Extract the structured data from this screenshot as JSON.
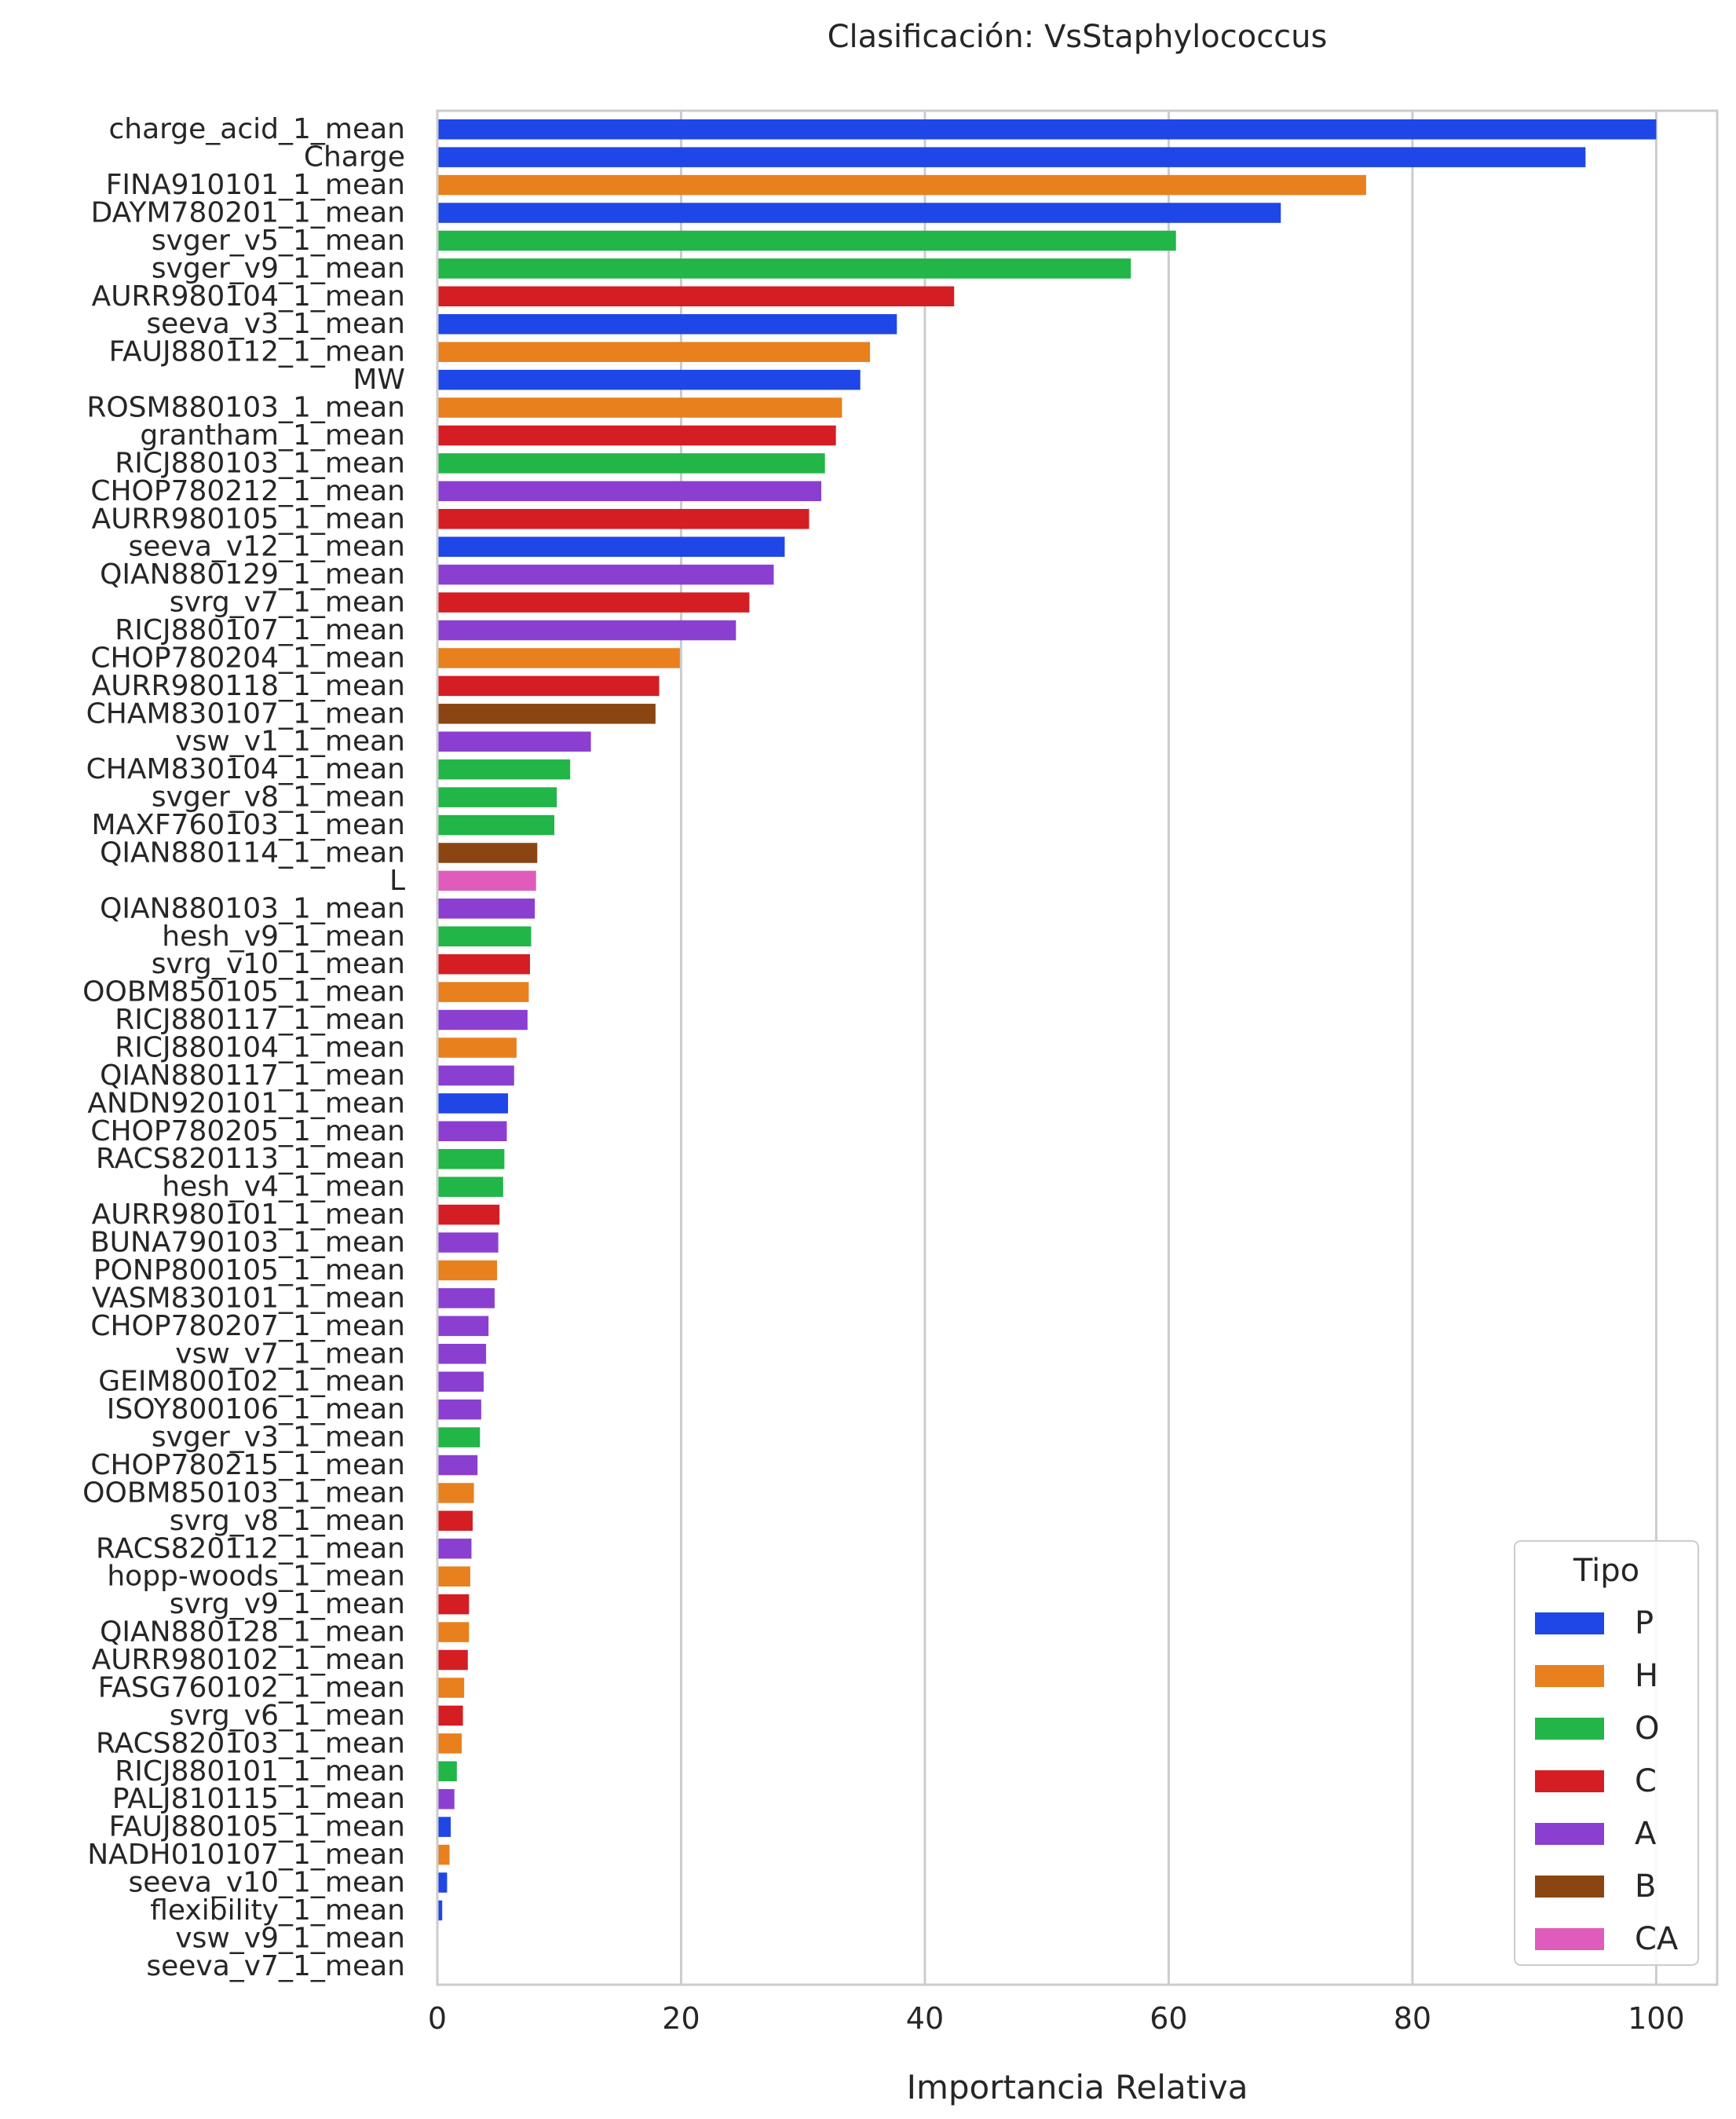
{
  "chart_data": {
    "type": "bar",
    "orientation": "horizontal",
    "title": "Clasificación: VsStaphylococcus",
    "xlabel": "Importancia Relativa",
    "ylabel": "",
    "xlim": [
      0,
      105
    ],
    "xticks": [
      0,
      20,
      40,
      60,
      80,
      100
    ],
    "grid": true,
    "legend": {
      "title": "Tipo",
      "placement": "bottom-right",
      "entries": [
        {
          "label": "P",
          "color": "#1f46e6"
        },
        {
          "label": "H",
          "color": "#e8801e"
        },
        {
          "label": "O",
          "color": "#22b548"
        },
        {
          "label": "C",
          "color": "#d41e23"
        },
        {
          "label": "A",
          "color": "#8b3fd0"
        },
        {
          "label": "B",
          "color": "#8b4513"
        },
        {
          "label": "CA",
          "color": "#e05cbc"
        }
      ]
    },
    "bars": [
      {
        "label": "charge_acid_1_mean",
        "value": 100,
        "type": "P"
      },
      {
        "label": "Charge",
        "value": 94.2,
        "type": "P"
      },
      {
        "label": "FINA910101_1_mean",
        "value": 76.2,
        "type": "H"
      },
      {
        "label": "DAYM780201_1_mean",
        "value": 69.2,
        "type": "P"
      },
      {
        "label": "svger_v5_1_mean",
        "value": 60.6,
        "type": "O"
      },
      {
        "label": "svger_v9_1_mean",
        "value": 56.9,
        "type": "O"
      },
      {
        "label": "AURR980104_1_mean",
        "value": 42.4,
        "type": "C"
      },
      {
        "label": "seeva_v3_1_mean",
        "value": 37.7,
        "type": "P"
      },
      {
        "label": "FAUJ880112_1_mean",
        "value": 35.5,
        "type": "H"
      },
      {
        "label": "MW",
        "value": 34.7,
        "type": "P"
      },
      {
        "label": "ROSM880103_1_mean",
        "value": 33.2,
        "type": "H"
      },
      {
        "label": "grantham_1_mean",
        "value": 32.7,
        "type": "C"
      },
      {
        "label": "RICJ880103_1_mean",
        "value": 31.8,
        "type": "O"
      },
      {
        "label": "CHOP780212_1_mean",
        "value": 31.5,
        "type": "A"
      },
      {
        "label": "AURR980105_1_mean",
        "value": 30.5,
        "type": "C"
      },
      {
        "label": "seeva_v12_1_mean",
        "value": 28.5,
        "type": "P"
      },
      {
        "label": "QIAN880129_1_mean",
        "value": 27.6,
        "type": "A"
      },
      {
        "label": "svrg_v7_1_mean",
        "value": 25.6,
        "type": "C"
      },
      {
        "label": "RICJ880107_1_mean",
        "value": 24.5,
        "type": "A"
      },
      {
        "label": "CHOP780204_1_mean",
        "value": 19.9,
        "type": "H"
      },
      {
        "label": "AURR980118_1_mean",
        "value": 18.2,
        "type": "C"
      },
      {
        "label": "CHAM830107_1_mean",
        "value": 17.9,
        "type": "B"
      },
      {
        "label": "vsw_v1_1_mean",
        "value": 12.6,
        "type": "A"
      },
      {
        "label": "CHAM830104_1_mean",
        "value": 10.9,
        "type": "O"
      },
      {
        "label": "svger_v8_1_mean",
        "value": 9.8,
        "type": "O"
      },
      {
        "label": "MAXF760103_1_mean",
        "value": 9.6,
        "type": "O"
      },
      {
        "label": "QIAN880114_1_mean",
        "value": 8.2,
        "type": "B"
      },
      {
        "label": "L",
        "value": 8.1,
        "type": "CA"
      },
      {
        "label": "QIAN880103_1_mean",
        "value": 8.0,
        "type": "A"
      },
      {
        "label": "hesh_v9_1_mean",
        "value": 7.7,
        "type": "O"
      },
      {
        "label": "svrg_v10_1_mean",
        "value": 7.6,
        "type": "C"
      },
      {
        "label": "OOBM850105_1_mean",
        "value": 7.5,
        "type": "H"
      },
      {
        "label": "RICJ880117_1_mean",
        "value": 7.4,
        "type": "A"
      },
      {
        "label": "RICJ880104_1_mean",
        "value": 6.5,
        "type": "H"
      },
      {
        "label": "QIAN880117_1_mean",
        "value": 6.3,
        "type": "A"
      },
      {
        "label": "ANDN920101_1_mean",
        "value": 5.8,
        "type": "P"
      },
      {
        "label": "CHOP780205_1_mean",
        "value": 5.7,
        "type": "A"
      },
      {
        "label": "RACS820113_1_mean",
        "value": 5.5,
        "type": "O"
      },
      {
        "label": "hesh_v4_1_mean",
        "value": 5.4,
        "type": "O"
      },
      {
        "label": "AURR980101_1_mean",
        "value": 5.1,
        "type": "C"
      },
      {
        "label": "BUNA790103_1_mean",
        "value": 5.0,
        "type": "A"
      },
      {
        "label": "PONP800105_1_mean",
        "value": 4.9,
        "type": "H"
      },
      {
        "label": "VASM830101_1_mean",
        "value": 4.7,
        "type": "A"
      },
      {
        "label": "CHOP780207_1_mean",
        "value": 4.2,
        "type": "A"
      },
      {
        "label": "vsw_v7_1_mean",
        "value": 4.0,
        "type": "A"
      },
      {
        "label": "GEIM800102_1_mean",
        "value": 3.8,
        "type": "A"
      },
      {
        "label": "ISOY800106_1_mean",
        "value": 3.6,
        "type": "A"
      },
      {
        "label": "svger_v3_1_mean",
        "value": 3.5,
        "type": "O"
      },
      {
        "label": "CHOP780215_1_mean",
        "value": 3.3,
        "type": "A"
      },
      {
        "label": "OOBM850103_1_mean",
        "value": 3.0,
        "type": "H"
      },
      {
        "label": "svrg_v8_1_mean",
        "value": 2.9,
        "type": "C"
      },
      {
        "label": "RACS820112_1_mean",
        "value": 2.8,
        "type": "A"
      },
      {
        "label": "hopp-woods_1_mean",
        "value": 2.7,
        "type": "H"
      },
      {
        "label": "svrg_v9_1_mean",
        "value": 2.6,
        "type": "C"
      },
      {
        "label": "QIAN880128_1_mean",
        "value": 2.6,
        "type": "H"
      },
      {
        "label": "AURR980102_1_mean",
        "value": 2.5,
        "type": "C"
      },
      {
        "label": "FASG760102_1_mean",
        "value": 2.2,
        "type": "H"
      },
      {
        "label": "svrg_v6_1_mean",
        "value": 2.1,
        "type": "C"
      },
      {
        "label": "RACS820103_1_mean",
        "value": 2.0,
        "type": "H"
      },
      {
        "label": "RICJ880101_1_mean",
        "value": 1.6,
        "type": "O"
      },
      {
        "label": "PALJ810115_1_mean",
        "value": 1.4,
        "type": "A"
      },
      {
        "label": "FAUJ880105_1_mean",
        "value": 1.1,
        "type": "P"
      },
      {
        "label": "NADH010107_1_mean",
        "value": 1.0,
        "type": "H"
      },
      {
        "label": "seeva_v10_1_mean",
        "value": 0.8,
        "type": "P"
      },
      {
        "label": "flexibility_1_mean",
        "value": 0.4,
        "type": "P"
      },
      {
        "label": "vsw_v9_1_mean",
        "value": 0,
        "type": "A"
      },
      {
        "label": "seeva_v7_1_mean",
        "value": 0,
        "type": "P"
      }
    ]
  }
}
